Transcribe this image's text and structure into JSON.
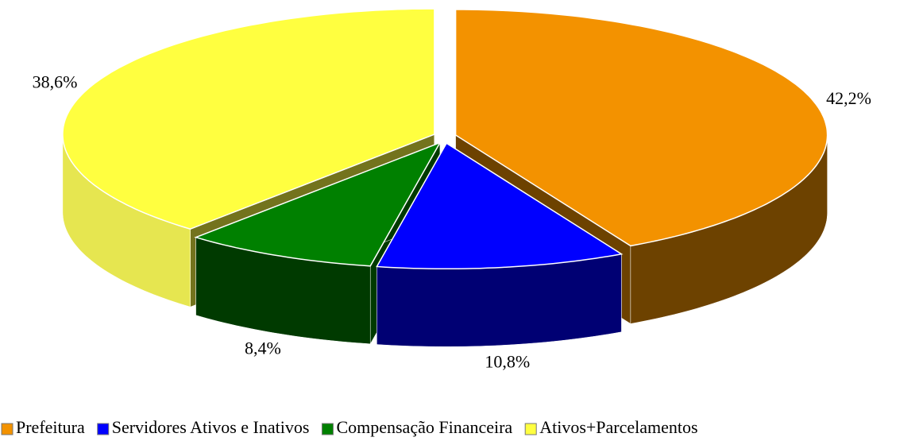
{
  "chart_data": {
    "type": "pie",
    "categories": [
      "Prefeitura",
      "Servidores Ativos e Inativos",
      "Compensação Financeira",
      "Ativos+Parcelamentos"
    ],
    "values": [
      42.2,
      10.8,
      8.4,
      38.6
    ],
    "value_labels": [
      "42,2%",
      "10,8%",
      "8,4%",
      "38,6%"
    ],
    "colors": [
      "#f39200",
      "#0000ff",
      "#008000",
      "#ffff40"
    ],
    "legend": "bottom"
  }
}
